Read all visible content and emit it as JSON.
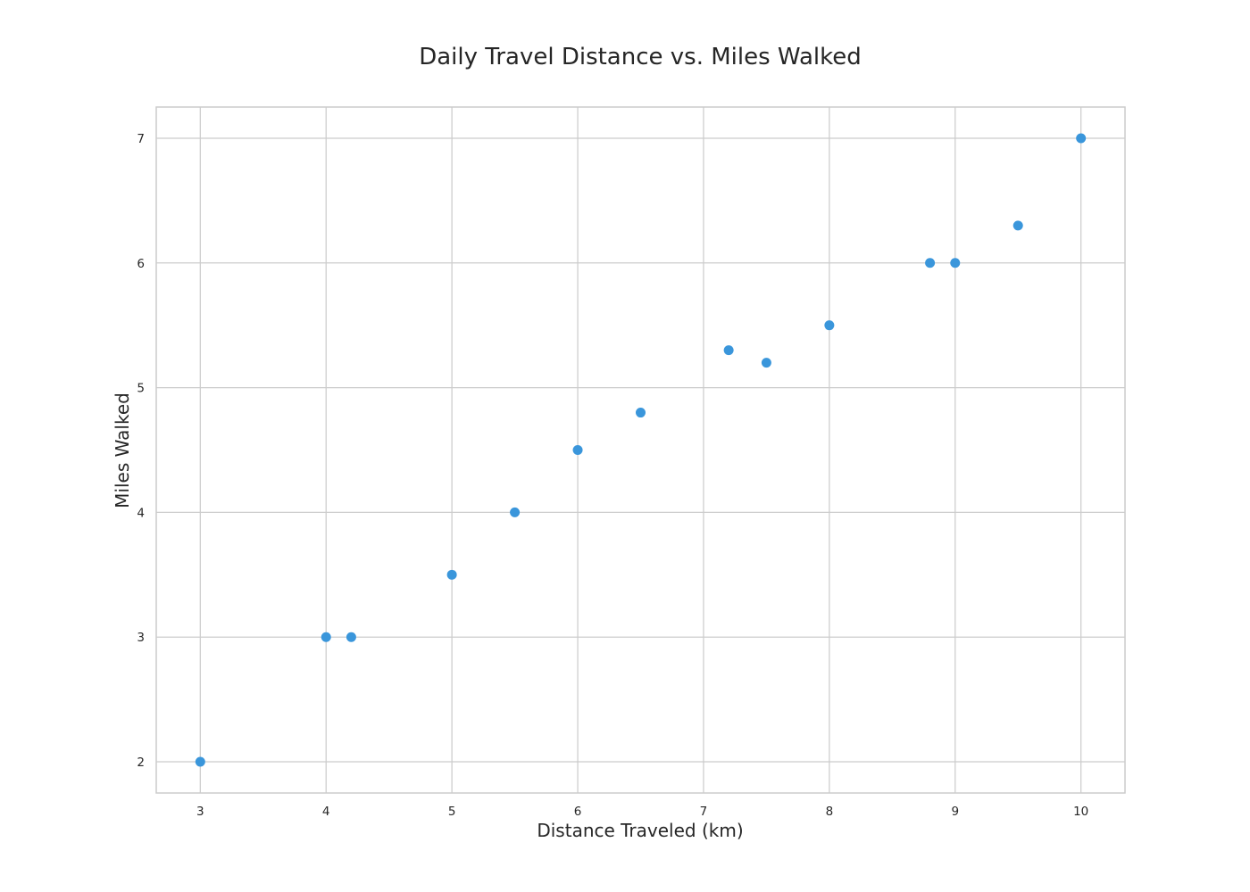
{
  "chart_data": {
    "type": "scatter",
    "title": "Daily Travel Distance vs. Miles Walked",
    "xlabel": "Distance Traveled (km)",
    "ylabel": "Miles Walked",
    "xlim": [
      2.65,
      10.35
    ],
    "ylim": [
      1.75,
      7.25
    ],
    "xticks": [
      3,
      4,
      5,
      6,
      7,
      8,
      9,
      10
    ],
    "yticks": [
      2,
      3,
      4,
      5,
      6,
      7
    ],
    "grid": true,
    "marker_color": "#3a96db",
    "series": [
      {
        "x": [
          3,
          4,
          4.2,
          5,
          5.5,
          6,
          6.5,
          7.2,
          7.5,
          8,
          8.8,
          9,
          9.5,
          10
        ],
        "y": [
          2,
          3,
          3,
          3.5,
          4,
          4.5,
          4.8,
          5.3,
          5.2,
          5.5,
          6,
          6,
          6.3,
          7
        ]
      }
    ]
  }
}
